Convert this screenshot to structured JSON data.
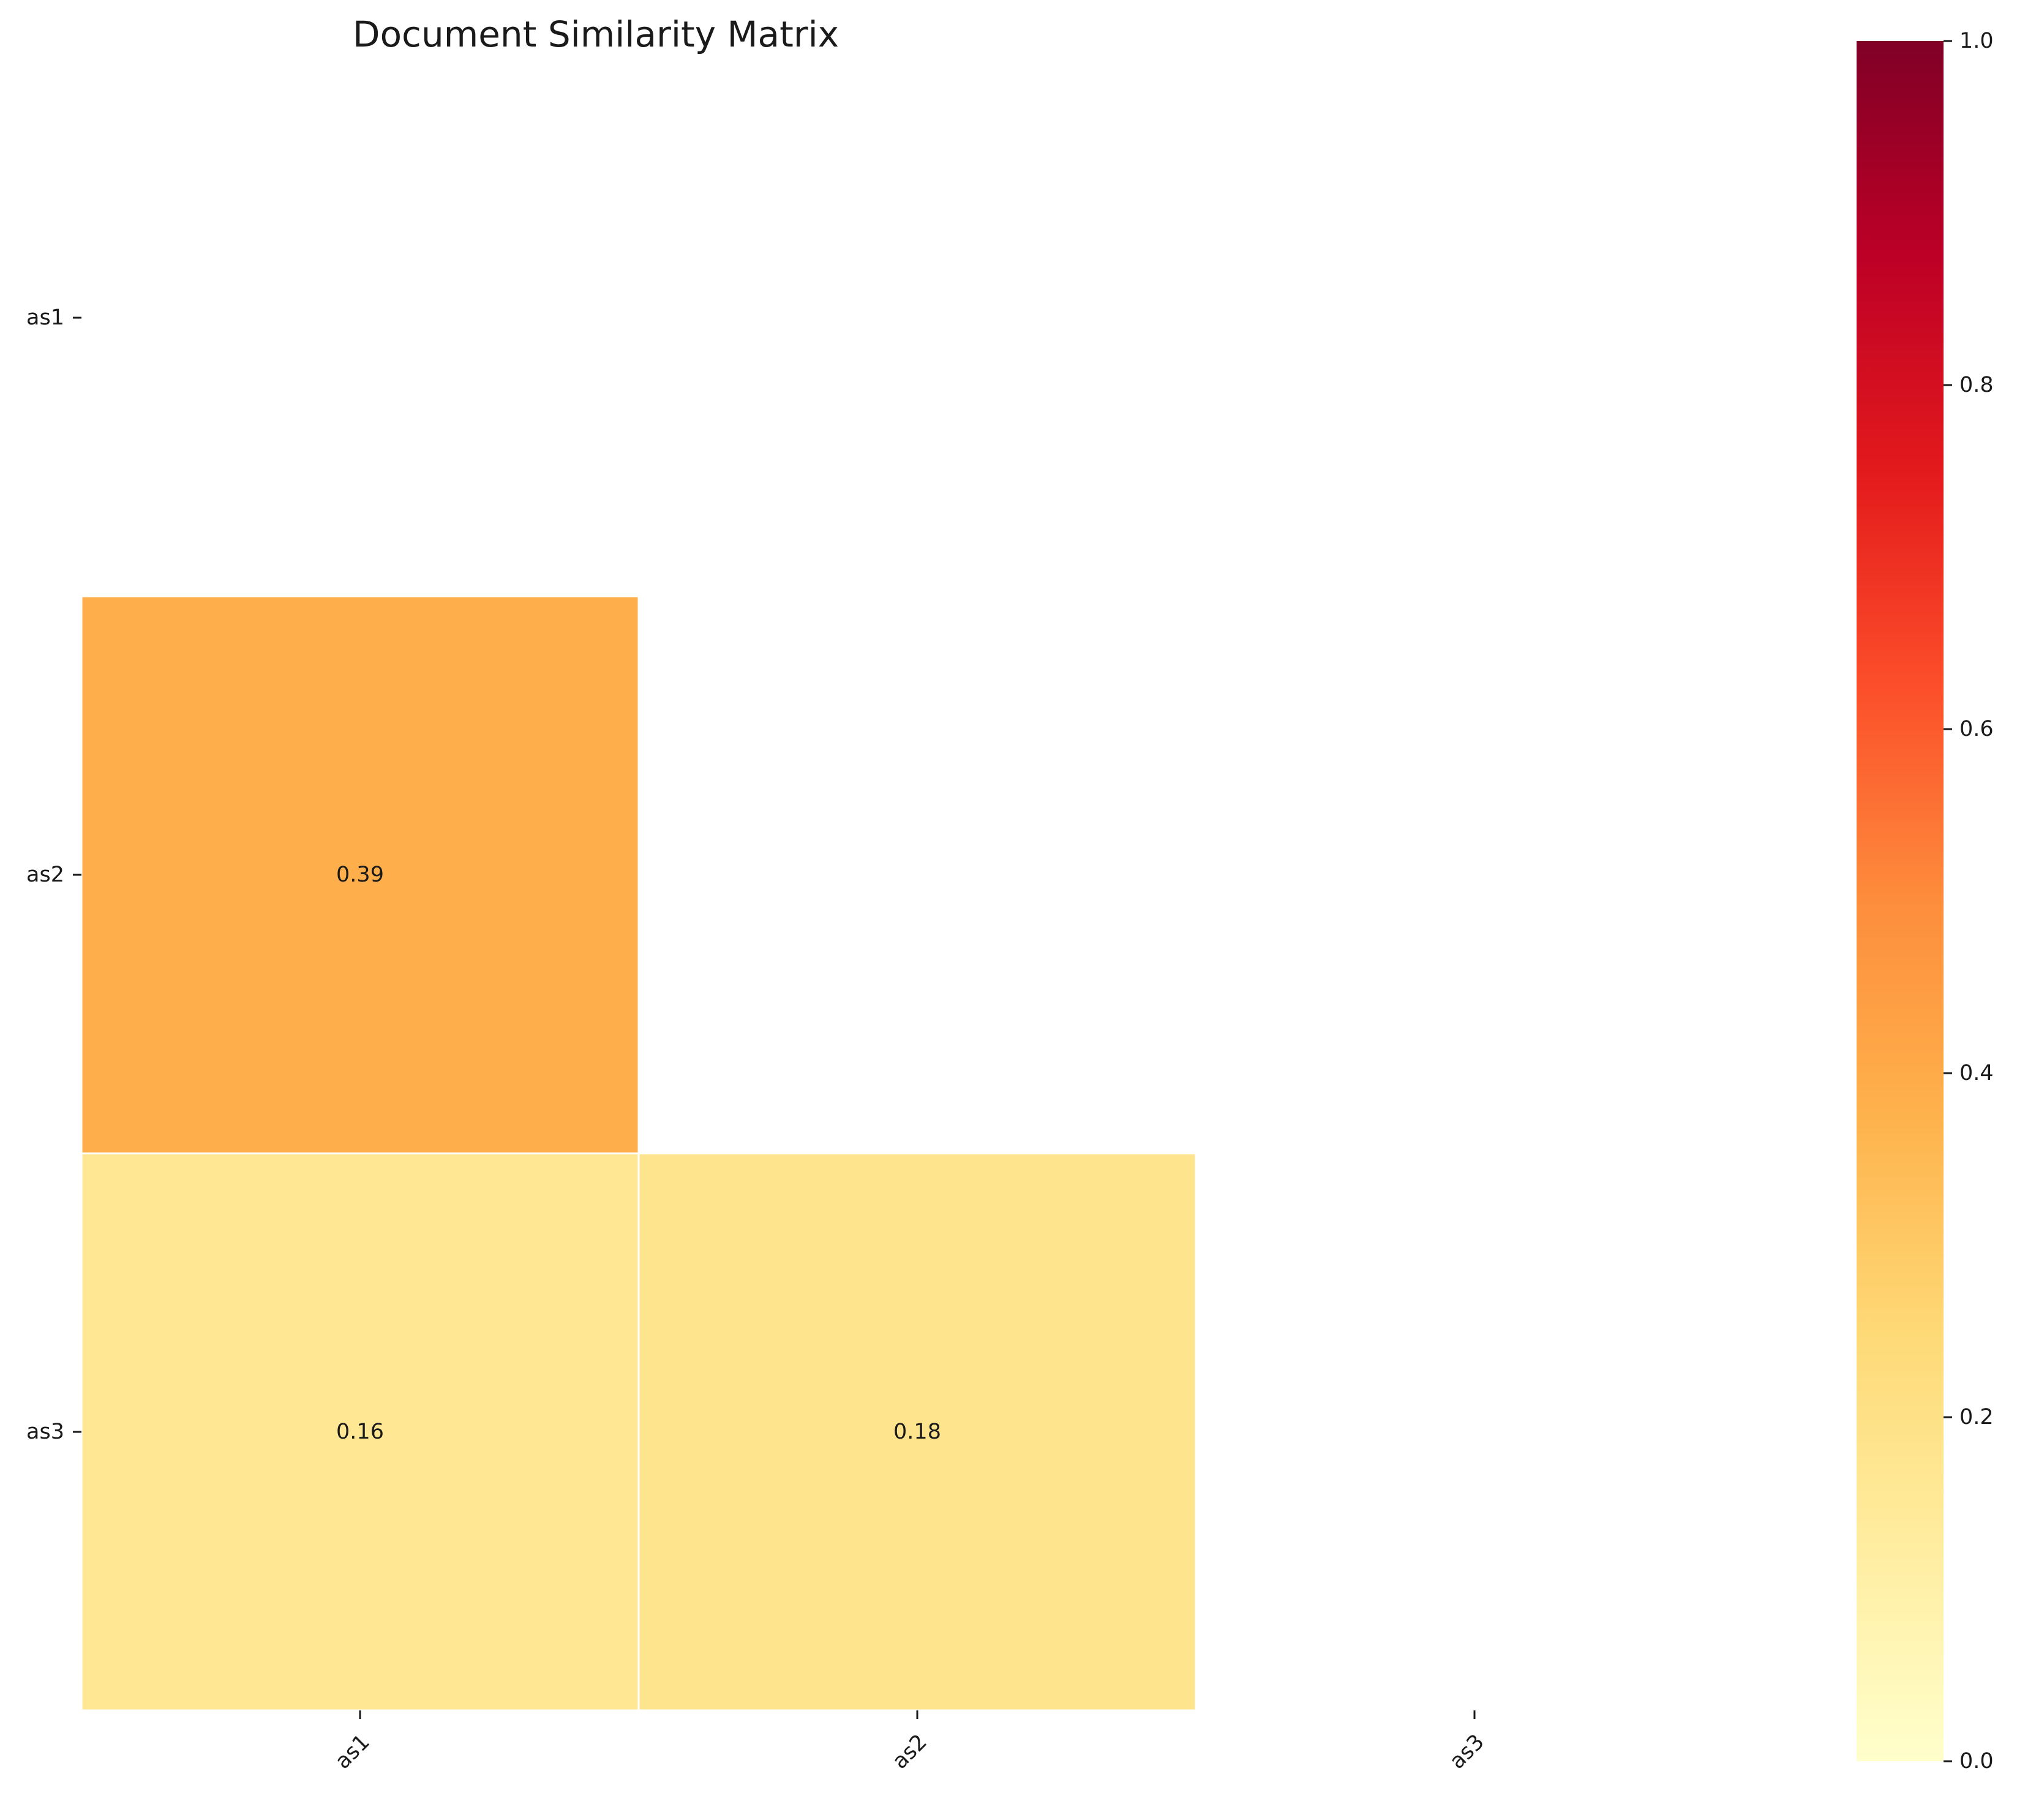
{
  "chart_data": {
    "type": "heatmap",
    "title": "Document Similarity Matrix",
    "xlabel": "",
    "ylabel": "",
    "rows": [
      "as1",
      "as2",
      "as3"
    ],
    "columns": [
      "as1",
      "as2",
      "as3"
    ],
    "cells": [
      {
        "row": "as2",
        "col": "as1",
        "value": 0.39,
        "label": "0.39"
      },
      {
        "row": "as3",
        "col": "as1",
        "value": 0.16,
        "label": "0.16"
      },
      {
        "row": "as3",
        "col": "as2",
        "value": 0.18,
        "label": "0.18"
      }
    ],
    "masked": "upper triangle and diagonal",
    "colormap": "YlOrRd",
    "colorbar": {
      "range": [
        0,
        1
      ],
      "ticks": [
        "0.0",
        "0.2",
        "0.4",
        "0.6",
        "0.8",
        "1.0"
      ],
      "stops": [
        "#ffffcc",
        "#ffeda0",
        "#fed976",
        "#feb24c",
        "#fd8d3c",
        "#fc4e2a",
        "#e31a1c",
        "#bd0026",
        "#800026"
      ]
    }
  }
}
